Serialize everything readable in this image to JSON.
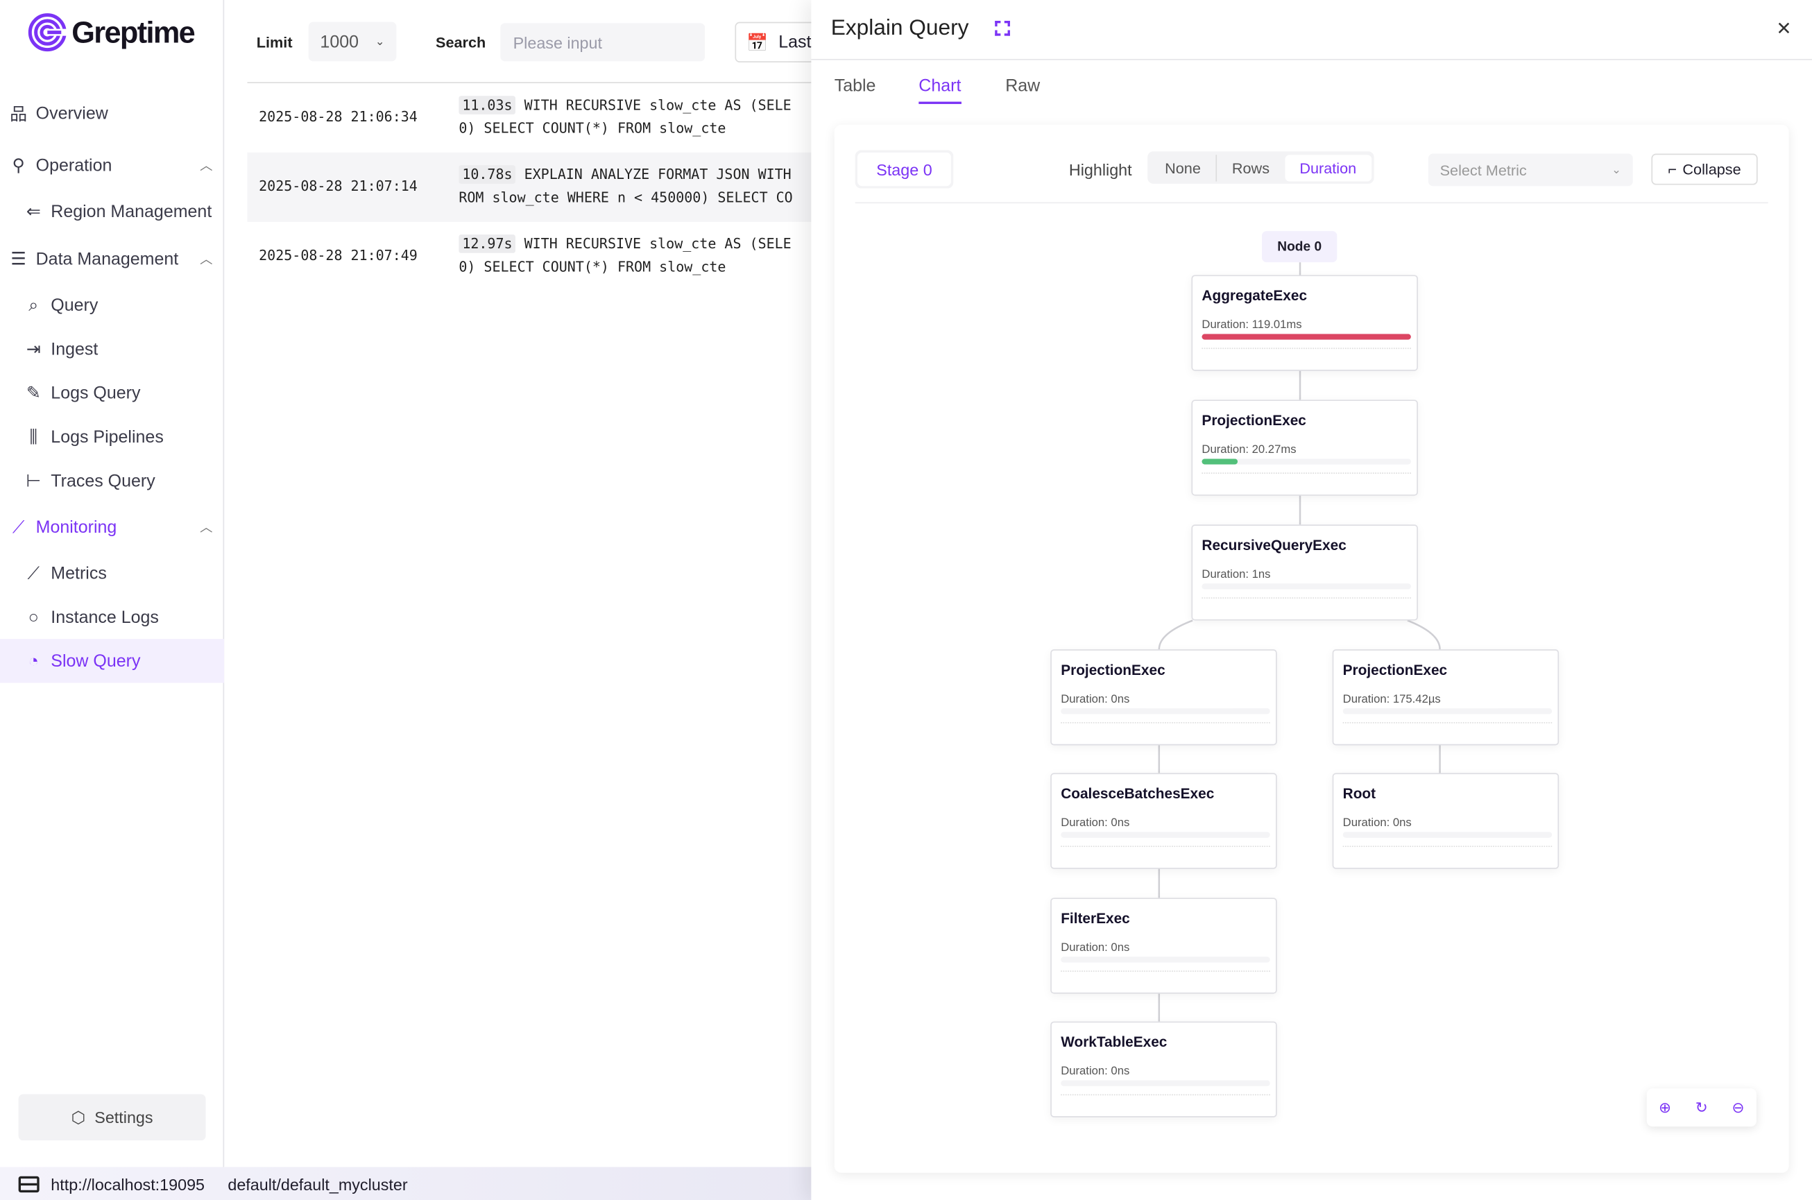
{
  "app": {
    "logo_text": "Greptime",
    "brand_color": "#7b33f5"
  },
  "sidebar": {
    "items": [
      {
        "label": "Overview",
        "icon": "sitemap-icon"
      },
      {
        "label": "Operation",
        "icon": "wrench-icon"
      },
      {
        "label": "Region Management",
        "icon": "region-icon"
      },
      {
        "label": "Data Management",
        "icon": "database-icon"
      },
      {
        "label": "Query",
        "icon": "query-icon"
      },
      {
        "label": "Ingest",
        "icon": "ingest-icon"
      },
      {
        "label": "Logs Query",
        "icon": "logs-query-icon"
      },
      {
        "label": "Logs Pipelines",
        "icon": "pipelines-icon"
      },
      {
        "label": "Traces Query",
        "icon": "traces-icon"
      },
      {
        "label": "Monitoring",
        "icon": "chart-line-icon"
      },
      {
        "label": "Metrics",
        "icon": "chart-line-icon"
      },
      {
        "label": "Instance Logs",
        "icon": "search-icon"
      },
      {
        "label": "Slow Query",
        "icon": "gauge-icon"
      }
    ],
    "settings_label": "Settings"
  },
  "status": {
    "url": "http://localhost:19095",
    "cluster": "default/default_mycluster"
  },
  "toolbar": {
    "limit_label": "Limit",
    "limit_value": "1000",
    "search_label": "Search",
    "search_placeholder": "Please input",
    "time_label": "Last"
  },
  "rows": [
    {
      "time": "2025-08-28 21:06:34",
      "duration": "11.03s",
      "line1": "WITH RECURSIVE slow_cte AS (SELE",
      "line2": "0) SELECT COUNT(*) FROM slow_cte"
    },
    {
      "time": "2025-08-28 21:07:14",
      "duration": "10.78s",
      "line1": "EXPLAIN ANALYZE FORMAT JSON WITH",
      "line2": "ROM slow_cte WHERE n < 450000) SELECT CO"
    },
    {
      "time": "2025-08-28 21:07:49",
      "duration": "12.97s",
      "line1": "WITH RECURSIVE slow_cte AS (SELE",
      "line2": "0) SELECT COUNT(*) FROM slow_cte"
    }
  ],
  "drawer": {
    "title": "Explain Query",
    "tabs": [
      "Table",
      "Chart",
      "Raw"
    ],
    "active_tab": "Chart",
    "stage": "Stage 0",
    "highlight_label": "Highlight",
    "highlight_options": [
      "None",
      "Rows",
      "Duration"
    ],
    "highlight_selected": "Duration",
    "metric_placeholder": "Select Metric",
    "collapse_label": "Collapse",
    "node_label": "Node 0"
  },
  "plan_nodes": [
    {
      "name": "AggregateExec",
      "duration": "Duration: 119.01ms",
      "fraction": 1.0,
      "color": "#dc4663"
    },
    {
      "name": "ProjectionExec",
      "duration": "Duration: 20.27ms",
      "fraction": 0.17,
      "color": "#52c07a"
    },
    {
      "name": "RecursiveQueryExec",
      "duration": "Duration: 1ns",
      "fraction": 0,
      "color": "#52c07a"
    },
    {
      "name": "ProjectionExec",
      "duration": "Duration: 0ns",
      "fraction": 0,
      "color": "#52c07a"
    },
    {
      "name": "CoalesceBatchesExec",
      "duration": "Duration: 0ns",
      "fraction": 0,
      "color": "#52c07a"
    },
    {
      "name": "FilterExec",
      "duration": "Duration: 0ns",
      "fraction": 0,
      "color": "#52c07a"
    },
    {
      "name": "WorkTableExec",
      "duration": "Duration: 0ns",
      "fraction": 0,
      "color": "#52c07a"
    },
    {
      "name": "ProjectionExec",
      "duration": "Duration: 175.42µs",
      "fraction": 0,
      "color": "#52c07a"
    },
    {
      "name": "Root",
      "duration": "Duration: 0ns",
      "fraction": 0,
      "color": "#52c07a"
    }
  ]
}
